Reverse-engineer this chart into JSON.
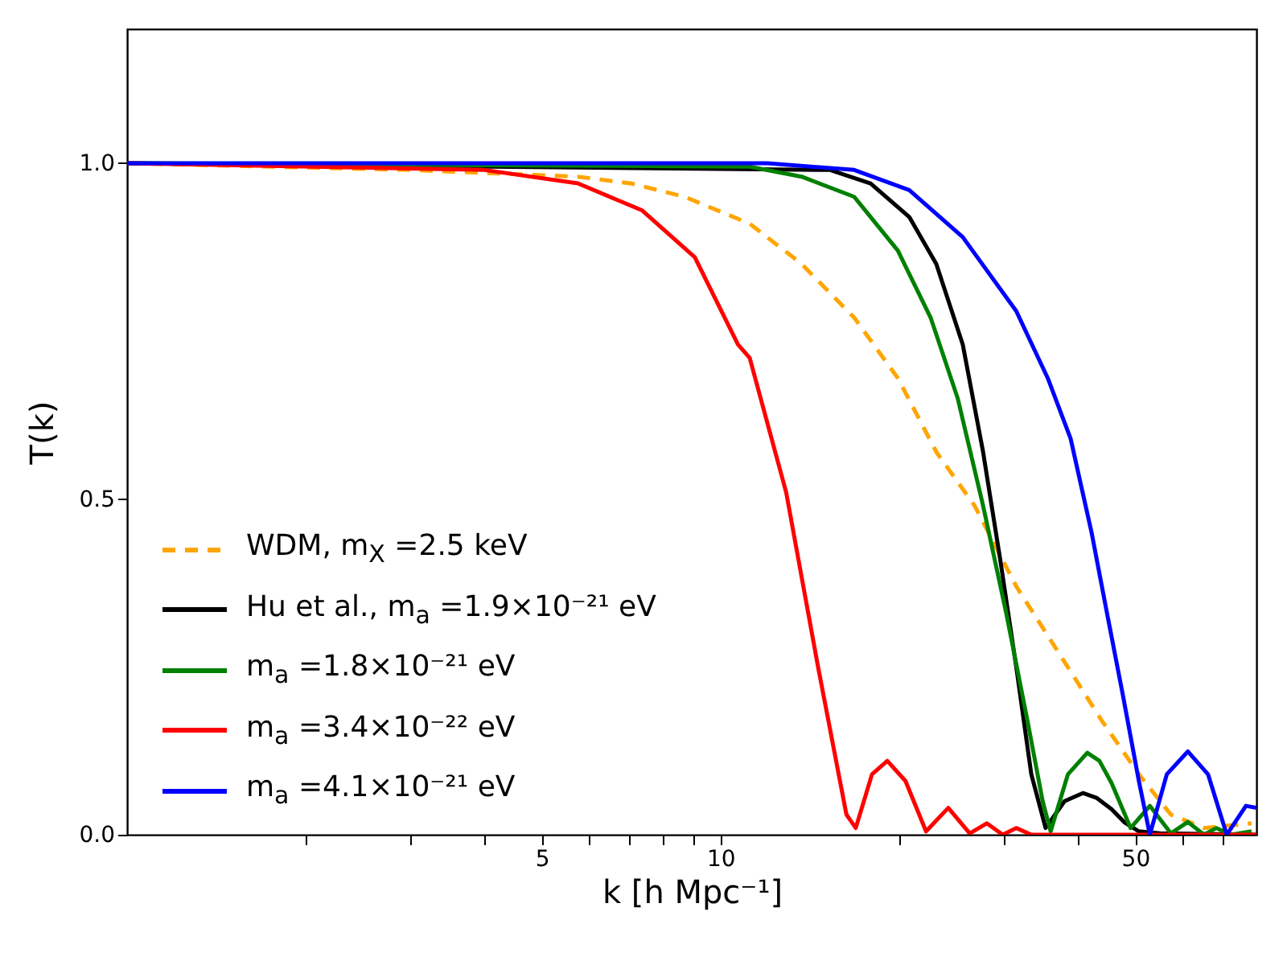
{
  "chart_data": {
    "type": "line",
    "xlabel": "k [h Mpc⁻¹]",
    "ylabel": "T(k)",
    "log": "x",
    "xlim": [
      1,
      80
    ],
    "ylim": [
      0,
      1.2
    ],
    "xticks": [
      {
        "value": 2,
        "label": null
      },
      {
        "value": 3,
        "label": null
      },
      {
        "value": 4,
        "label": null
      },
      5,
      {
        "value": 6,
        "label": null
      },
      {
        "value": 7,
        "label": null
      },
      {
        "value": 8,
        "label": null
      },
      {
        "value": 9,
        "label": null
      },
      10,
      {
        "value": 20,
        "label": null
      },
      {
        "value": 30,
        "label": null
      },
      {
        "value": 40,
        "label": null
      },
      50,
      {
        "value": 60,
        "label": null
      },
      {
        "value": 70,
        "label": null
      }
    ],
    "yticks": [
      {
        "value": 0,
        "label": "0.0"
      },
      {
        "value": 0.5,
        "label": "0.5"
      },
      {
        "value": 1,
        "label": "1.0"
      }
    ],
    "grid": false,
    "legend": "bottom left",
    "marker": "none",
    "series": [
      {
        "name": "WDM, m$_{X}$ =2.5 keV",
        "color": "#ffa500",
        "line_style": "dashed",
        "x": [
          1,
          3,
          5.75,
          7.06,
          8.7,
          11.2,
          13.7,
          16.8,
          19.9,
          23.1,
          26.8,
          31.5,
          37.2,
          43.9,
          50.7,
          57.4,
          65.3,
          72.5,
          78.5
        ],
        "values": [
          1,
          0.99,
          0.98,
          0.97,
          0.95,
          0.91,
          0.85,
          0.77,
          0.68,
          0.57,
          0.49,
          0.37,
          0.27,
          0.17,
          0.09,
          0.03,
          0.01,
          0.014,
          0.017
        ]
      },
      {
        "name": "Hu et al., m$_{a}$ =1.9×10⁻²¹ eV",
        "color": "#000000",
        "line_style": "solid",
        "x": [
          1,
          15.3,
          17.9,
          20.8,
          23.1,
          25.6,
          27.7,
          29.6,
          31.5,
          33.4,
          35.3,
          38,
          40.8,
          43,
          45.6,
          48,
          50.7,
          55,
          80
        ],
        "values": [
          1,
          0.99,
          0.97,
          0.92,
          0.85,
          0.73,
          0.57,
          0.41,
          0.25,
          0.09,
          0.01,
          0.05,
          0.062,
          0.055,
          0.038,
          0.018,
          0.005,
          0.002,
          0
        ]
      },
      {
        "name": "m$_{a}$ =1.8×10⁻²¹ eV",
        "color": "#008000",
        "line_style": "solid",
        "x": [
          1,
          11.2,
          13.7,
          16.8,
          19.9,
          22.6,
          25.1,
          27.7,
          30.3,
          32.9,
          34.9,
          36,
          38.5,
          41.5,
          43.5,
          45.6,
          49.1,
          52.9,
          57.4,
          61.3,
          65.3,
          68.5,
          72.5,
          78.5
        ],
        "values": [
          1,
          0.995,
          0.98,
          0.95,
          0.87,
          0.77,
          0.65,
          0.49,
          0.33,
          0.17,
          0.05,
          0.005,
          0.09,
          0.122,
          0.11,
          0.077,
          0.01,
          0.043,
          0.002,
          0.019,
          0,
          0.01,
          0,
          0.005
        ]
      },
      {
        "name": "m$_{a}$ =3.4×10⁻²² eV",
        "color": "#ff0000",
        "line_style": "solid",
        "x": [
          1,
          4,
          5.75,
          7.37,
          9.05,
          10.7,
          11.2,
          12.9,
          14.6,
          16.3,
          16.9,
          18,
          19.1,
          20.5,
          22.2,
          24.2,
          26.3,
          28.1,
          29.9,
          31.5,
          33.4,
          80
        ],
        "values": [
          1,
          0.99,
          0.97,
          0.93,
          0.86,
          0.73,
          0.71,
          0.51,
          0.25,
          0.03,
          0.01,
          0.09,
          0.11,
          0.08,
          0.005,
          0.04,
          0.002,
          0.017,
          0,
          0.01,
          0,
          0
        ]
      },
      {
        "name": "m$_{a}$ =4.1×10⁻²¹ eV",
        "color": "#0000ff",
        "line_style": "solid",
        "x": [
          1,
          12,
          16.8,
          20.8,
          25.6,
          31.5,
          35.6,
          38.9,
          42.2,
          44.8,
          47.6,
          50.7,
          52.9,
          56.5,
          61.3,
          66.3,
          71.3,
          76.8,
          80
        ],
        "values": [
          1,
          1,
          0.99,
          0.96,
          0.89,
          0.78,
          0.68,
          0.59,
          0.45,
          0.33,
          0.21,
          0.08,
          0,
          0.09,
          0.124,
          0.09,
          0,
          0.043,
          0.04
        ]
      }
    ]
  }
}
